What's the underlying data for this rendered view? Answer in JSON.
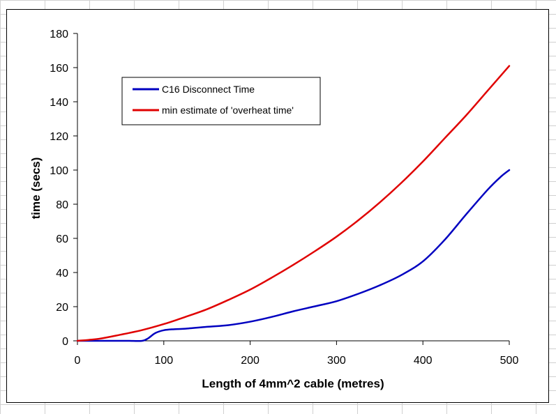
{
  "chart_data": {
    "type": "line",
    "title": "",
    "xlabel": "Length of 4mm^2 cable (metres)",
    "ylabel": "time (secs)",
    "xlim": [
      0,
      500
    ],
    "ylim": [
      0,
      180
    ],
    "xticks": [
      0,
      100,
      200,
      300,
      400,
      500
    ],
    "yticks": [
      0,
      20,
      40,
      60,
      80,
      100,
      120,
      140,
      160,
      180
    ],
    "grid": false,
    "legend_position": "top-left",
    "series": [
      {
        "name": "C16 Disconnect Time",
        "color": "#0000c0",
        "x": [
          0,
          25,
          50,
          60,
          75,
          82,
          90,
          100,
          112,
          125,
          150,
          175,
          200,
          225,
          250,
          275,
          300,
          325,
          350,
          375,
          400,
          425,
          450,
          475,
          490,
          500
        ],
        "y": [
          0,
          0,
          0,
          0,
          0,
          1.5,
          4.5,
          6.2,
          6.8,
          7.1,
          8.2,
          9.2,
          11.2,
          14,
          17.3,
          20.2,
          23.2,
          27.5,
          32.5,
          38.5,
          46.5,
          59,
          74,
          88.5,
          96,
          100
        ]
      },
      {
        "name": "min estimate of 'overheat time'",
        "color": "#e00000",
        "x": [
          0,
          25,
          50,
          75,
          100,
          125,
          150,
          175,
          200,
          225,
          250,
          275,
          300,
          325,
          350,
          375,
          400,
          425,
          450,
          475,
          500
        ],
        "y": [
          0,
          1.2,
          3.6,
          6.3,
          9.8,
          14,
          18.5,
          24,
          30,
          37,
          44.5,
          52.5,
          61,
          70.5,
          81,
          92.5,
          105,
          118.5,
          132,
          146.5,
          161
        ]
      }
    ]
  }
}
